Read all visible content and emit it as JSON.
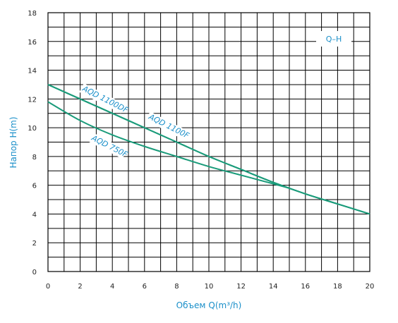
{
  "chart_data": {
    "type": "line",
    "xlabel": "Объем",
    "xlabel_unit": "Q(m³/h)",
    "ylabel": "Напор H(m)",
    "legend": "Q–H",
    "xlim": [
      0,
      20
    ],
    "ylim": [
      0,
      18
    ],
    "x_ticks": [
      "0",
      "2",
      "4",
      "6",
      "8",
      "10",
      "12",
      "14",
      "16",
      "18",
      "20"
    ],
    "y_ticks": [
      "0",
      "2",
      "4",
      "6",
      "8",
      "10",
      "12",
      "14",
      "16",
      "18"
    ],
    "grid": true,
    "line_color": "#1a9b7a",
    "series": [
      {
        "name": "AQD 1100DF",
        "x": [
          0,
          2,
          4,
          6,
          8,
          10,
          12,
          14,
          16,
          18,
          20
        ],
        "y": [
          13.0,
          12.0,
          11.0,
          10.0,
          9.0,
          8.0,
          7.1,
          6.2,
          5.4,
          4.7,
          4.0
        ]
      },
      {
        "name": "AQD 1100F",
        "x": [
          0,
          2,
          4,
          6,
          8,
          10,
          12,
          14,
          16,
          18,
          20
        ],
        "y": [
          13.0,
          12.0,
          11.0,
          10.0,
          9.0,
          8.0,
          7.1,
          6.2,
          5.4,
          4.7,
          4.0
        ]
      },
      {
        "name": "AQD 750F",
        "x": [
          0,
          2,
          4,
          6,
          8,
          10,
          12,
          14,
          15
        ],
        "y": [
          11.8,
          10.5,
          9.5,
          8.7,
          8.0,
          7.3,
          6.7,
          6.1,
          5.8
        ]
      }
    ]
  }
}
